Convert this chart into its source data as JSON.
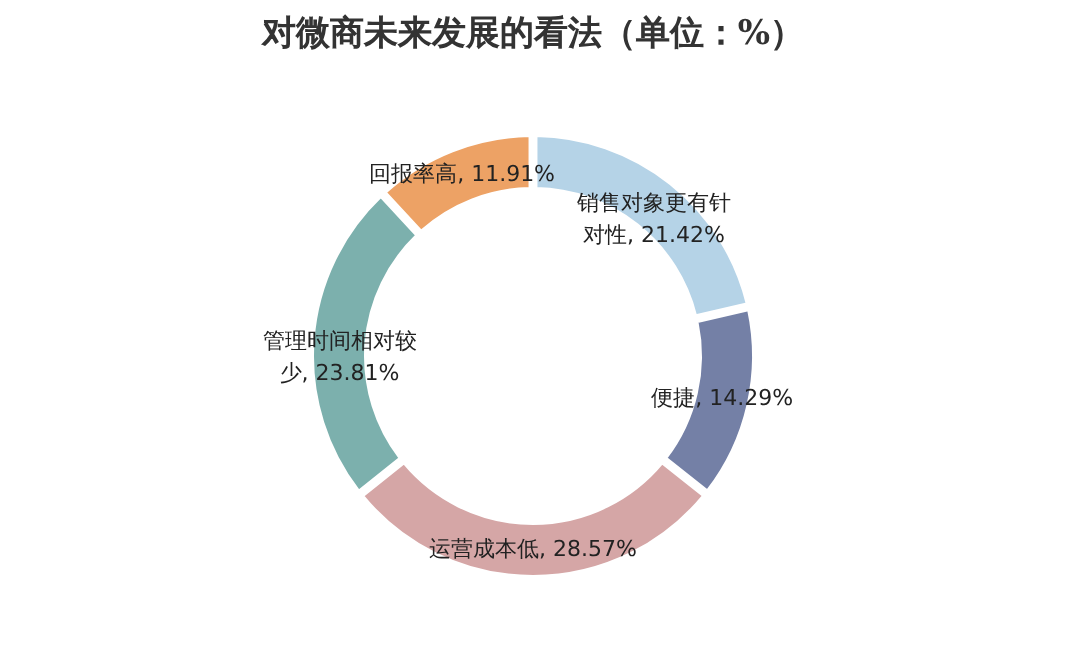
{
  "chart_data": {
    "type": "donut",
    "title": "对微商未来发展的看法（单位：%）",
    "categories": [
      "销售对象更有针对性",
      "便捷",
      "运营成本低",
      "管理时间相对较少",
      "回报率高"
    ],
    "values": [
      21.42,
      14.29,
      28.57,
      23.81,
      11.91
    ],
    "value_labels": [
      "21.42%",
      "14.29%",
      "28.57%",
      "23.81%",
      "11.91%"
    ],
    "colors": [
      "#b5d3e7",
      "#7480a6",
      "#d5a6a6",
      "#7cb0ad",
      "#eda265"
    ],
    "legend": false
  }
}
